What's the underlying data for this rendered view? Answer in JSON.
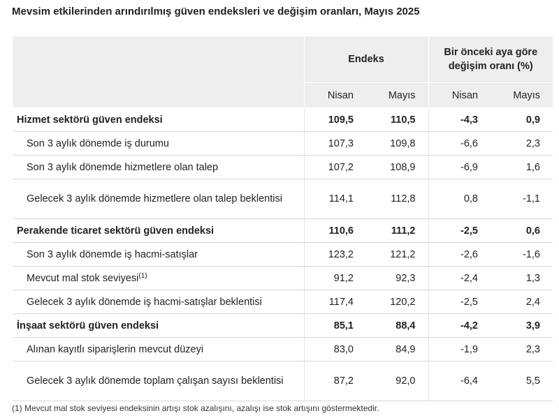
{
  "title": "Mevsim etkilerinden arındırılmış güven endeksleri ve değişim oranları, Mayıs 2025",
  "header": {
    "group1": "Endeks",
    "group2": "Bir önceki aya göre değişim oranı (%)",
    "cols": [
      "Nisan",
      "Mayıs",
      "Nisan",
      "Mayıs"
    ]
  },
  "rows": [
    {
      "label": "Hizmet sektörü güven endeksi",
      "values": [
        "109,5",
        "110,5",
        "-4,3",
        "0,9"
      ]
    },
    {
      "label": "Son 3 aylık dönemde iş durumu",
      "values": [
        "107,3",
        "109,8",
        "-6,6",
        "2,3"
      ]
    },
    {
      "label": "Son 3 aylık dönemde hizmetlere olan talep",
      "values": [
        "107,2",
        "108,9",
        "-6,9",
        "1,6"
      ]
    },
    {
      "label": "Gelecek 3 aylık dönemde hizmetlere olan talep beklentisi",
      "values": [
        "114,1",
        "112,8",
        "0,8",
        "-1,1"
      ]
    },
    {
      "label": "Perakende ticaret sektörü güven endeksi",
      "values": [
        "110,6",
        "111,2",
        "-2,5",
        "0,6"
      ]
    },
    {
      "label": "Son 3 aylık dönemde iş hacmi-satışlar",
      "values": [
        "123,2",
        "121,2",
        "-2,6",
        "-1,6"
      ]
    },
    {
      "label": "Mevcut mal stok seviyesi",
      "sup": "(1)",
      "values": [
        "91,2",
        "92,3",
        "-2,4",
        "1,3"
      ]
    },
    {
      "label": "Gelecek 3 aylık dönemde iş hacmi-satışlar beklentisi",
      "values": [
        "117,4",
        "120,2",
        "-2,5",
        "2,4"
      ]
    },
    {
      "label": "İnşaat sektörü güven endeksi",
      "values": [
        "85,1",
        "88,4",
        "-4,2",
        "3,9"
      ]
    },
    {
      "label": "Alınan kayıtlı siparişlerin mevcut düzeyi",
      "values": [
        "83,0",
        "84,9",
        "-1,9",
        "2,3"
      ]
    },
    {
      "label": "Gelecek 3 aylık dönemde toplam çalışan sayısı beklentisi",
      "values": [
        "87,2",
        "92,0",
        "-6,4",
        "5,5"
      ]
    }
  ],
  "footnote": "(1) Mevcut mal stok seviyesi endeksinin artışı stok azalışını, azalışı ise stok artışını göstermektedir."
}
